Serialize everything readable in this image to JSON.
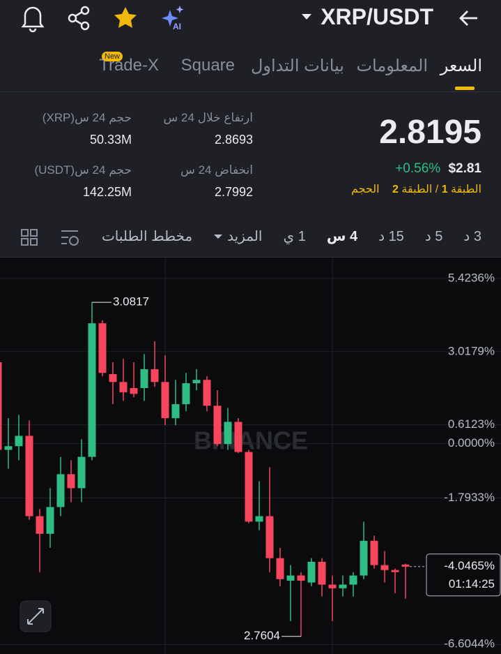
{
  "header": {
    "pair": "XRP/USDT"
  },
  "tabs": {
    "items": [
      "السعر",
      "المعلومات",
      "بيانات التداول",
      "Square",
      "Trade-X"
    ],
    "badge": "New"
  },
  "stats": {
    "price": "2.8195",
    "change": "+0.56%",
    "usd": "$2.81",
    "tier": [
      "الطبقة",
      "1",
      "/ الطبقة",
      "2"
    ],
    "volume_tag": "الحجم",
    "items": [
      {
        "label": "ارتفاع خلال 24 س",
        "value": "2.8693"
      },
      {
        "label": "حجم 24 س(XRP)",
        "value": "50.33M"
      },
      {
        "label": "انخفاض 24 س",
        "value": "2.7992"
      },
      {
        "label": "حجم 24 س(USDT)",
        "value": "142.25M"
      }
    ]
  },
  "toolbar": {
    "intervals": [
      "3 د",
      "5 د",
      "15 د",
      "4 س",
      "1 ي"
    ],
    "more": "المزيد",
    "depth": "مخطط الطلبات"
  },
  "chart_data": {
    "type": "candlestick",
    "watermark": "BINANCE",
    "up_color": "#2ebd85",
    "down_color": "#f6465d",
    "open": [
      2.67,
      -0.21,
      -0.09,
      0.25,
      -2.39,
      -2.97,
      -2.09,
      -1.01,
      -1.47,
      -0.44,
      3.95,
      2.28,
      2.02,
      1.82,
      1.82,
      2.44,
      2.02,
      0.83,
      1.29,
      1.98,
      2.09,
      1.24,
      -0.02,
      0.71,
      -0.28,
      -2.57,
      -2.39,
      -3.77,
      -4.51,
      -4.34,
      -4.57,
      -3.89,
      -4.64,
      -4.76,
      -4.64,
      -4.34,
      -3.2,
      -4.0,
      -4.16,
      -3.98
    ],
    "close": [
      -0.21,
      -0.09,
      0.25,
      -2.39,
      -2.97,
      -2.09,
      -1.01,
      -1.47,
      -0.44,
      3.95,
      2.32,
      2.02,
      1.68,
      1.63,
      2.44,
      2.02,
      0.83,
      1.29,
      1.98,
      2.09,
      1.24,
      -0.02,
      0.71,
      -0.28,
      -2.57,
      -2.39,
      -3.77,
      -4.46,
      -4.34,
      -4.51,
      -3.89,
      -4.64,
      -4.76,
      -4.64,
      -4.34,
      -3.2,
      -4.0,
      -4.16,
      -4.23,
      -4.05
    ],
    "high": [
      2.78,
      0.83,
      0.94,
      0.76,
      -2.16,
      -1.47,
      -0.44,
      -0.55,
      0.14,
      4.64,
      4.05,
      2.67,
      2.78,
      2.67,
      2.94,
      3.36,
      2.9,
      2.09,
      2.32,
      2.44,
      2.21,
      1.75,
      1.17,
      0.83,
      -0.21,
      -1.24,
      -0.78,
      -3.43,
      -4.0,
      -4.23,
      -3.77,
      -3.77,
      -4.34,
      -4.34,
      -4.23,
      -2.57,
      -3.03,
      -3.54,
      -4.11,
      -3.95
    ],
    "low": [
      -0.44,
      -0.83,
      -0.55,
      -2.51,
      -4.23,
      -3.43,
      -2.39,
      -1.93,
      -1.93,
      -0.55,
      2.21,
      1.29,
      1.4,
      1.52,
      1.4,
      1.86,
      0.6,
      0.6,
      1.06,
      1.75,
      1.06,
      -0.09,
      -0.21,
      -0.32,
      -2.62,
      -2.85,
      -4.23,
      -4.69,
      -5.84,
      -6.34,
      -4.69,
      -5.03,
      -5.84,
      -5.03,
      -5.03,
      -4.46,
      -4.11,
      -4.57,
      -4.92,
      -5.1
    ],
    "max_label": "3.0817",
    "min_label": "2.7604",
    "last_price": {
      "value": -4.0465,
      "label": "-4.0465%"
    },
    "countdown": "01:14:25",
    "ylim": [
      -6.92,
      6.11
    ],
    "yticks": [
      {
        "value": 5.4236,
        "label": "5.4236%"
      },
      {
        "value": 3.0179,
        "label": "3.0179%"
      },
      {
        "value": 0.6123,
        "label": "0.6123%"
      },
      {
        "value": 0.0,
        "label": "0.0000%"
      },
      {
        "value": -1.7933,
        "label": "-1.7933%"
      },
      {
        "value": -6.6044,
        "label": "-6.6044%"
      }
    ],
    "grid": true
  }
}
